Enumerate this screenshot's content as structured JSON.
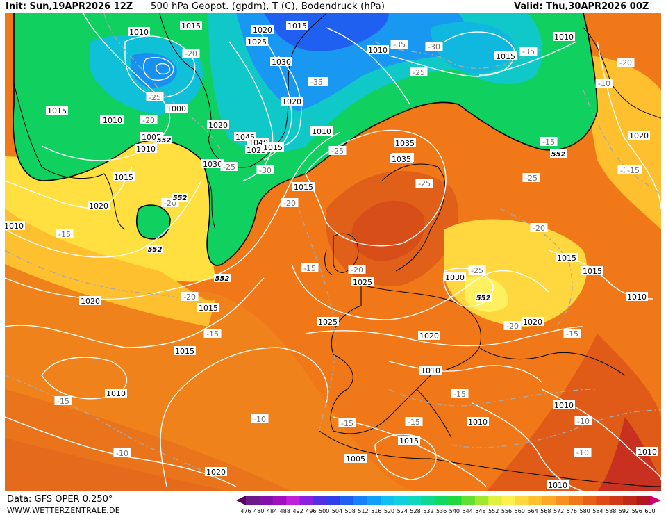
{
  "header": {
    "init": "Init: Sun,19APR2026 12Z",
    "title": "500 hPa Geopot. (gpdm), T (C), Bodendruck (hPa)",
    "valid": "Valid: Thu,30APR2026 00Z"
  },
  "footer": {
    "data_source": "Data: GFS OPER 0.250°",
    "website": "WWW.WETTERZENTRALE.DE"
  },
  "legend": {
    "values": [
      "476",
      "480",
      "484",
      "488",
      "492",
      "496",
      "500",
      "504",
      "508",
      "512",
      "516",
      "520",
      "524",
      "528",
      "532",
      "536",
      "540",
      "544",
      "548",
      "552",
      "556",
      "560",
      "564",
      "568",
      "572",
      "576",
      "580",
      "584",
      "588",
      "592",
      "596",
      "600"
    ],
    "colors": [
      "#5a0060",
      "#6a1a8a",
      "#8010a8",
      "#a010c0",
      "#c020d8",
      "#8a20e0",
      "#5030e0",
      "#3040e8",
      "#2060f0",
      "#1880f8",
      "#10a0f8",
      "#10c0f0",
      "#10d0e0",
      "#10d8c0",
      "#10d890",
      "#10d860",
      "#20d840",
      "#60e030",
      "#a0e830",
      "#e0f040",
      "#fff050",
      "#ffd840",
      "#ffc030",
      "#ffa828",
      "#f89020",
      "#f07818",
      "#e86018",
      "#e04818",
      "#d03818",
      "#c02818",
      "#b01820",
      "#d00070"
    ]
  },
  "isobars": [
    "1015",
    "1010",
    "1015",
    "1020",
    "1015",
    "1025",
    "1030",
    "1020",
    "1000",
    "1005",
    "1005",
    "1010",
    "1015",
    "1020",
    "1045",
    "1040",
    "1025",
    "1015",
    "1030",
    "1020",
    "1010",
    "1010",
    "1015",
    "1010",
    "1020",
    "1025",
    "1030",
    "1035",
    "1035",
    "1030",
    "1015",
    "1015",
    "1010",
    "1020",
    "1025",
    "1020",
    "1015",
    "1015",
    "1010",
    "1020",
    "1010",
    "1015",
    "1005",
    "1010",
    "1020",
    "1010",
    "1010",
    "1010",
    "1015",
    "1010",
    "1010"
  ],
  "temperatures": [
    "-20",
    "-25",
    "-30",
    "-35",
    "-25",
    "-30",
    "-35",
    "-20",
    "-25",
    "-20",
    "-25",
    "-25",
    "-30",
    "-20",
    "-35",
    "-15",
    "-25",
    "-20",
    "-20",
    "-25",
    "-20",
    "-15",
    "-20",
    "-15",
    "-15",
    "-15",
    "-15",
    "-15",
    "-20",
    "-20",
    "-15",
    "-10",
    "-10",
    "-10",
    "-15",
    "-15",
    "-10",
    "-15",
    "-10"
  ],
  "geopotential_labels": [
    "552",
    "552",
    "552",
    "552",
    "552",
    "552"
  ]
}
